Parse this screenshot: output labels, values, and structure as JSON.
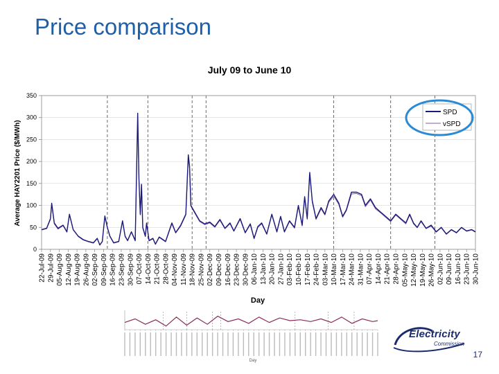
{
  "slide": {
    "title": "Price comparison",
    "page_number": "17"
  },
  "logo": {
    "word": "Electricity",
    "sub": "Commission"
  },
  "chart_data": {
    "type": "line",
    "title": "July 09 to June 10",
    "xlabel": "Day",
    "ylabel": "Average HAY2201 Price ($/MWh)",
    "ylim": [
      0,
      350
    ],
    "yticks": [
      0,
      50,
      100,
      150,
      200,
      250,
      300,
      350
    ],
    "x_start": "2009-07-22",
    "x_end": "2010-06-30",
    "xtick_labels": [
      "22-Jul-09",
      "29-Jul-09",
      "05-Aug-09",
      "12-Aug-09",
      "19-Aug-09",
      "26-Aug-09",
      "02-Sep-09",
      "09-Sep-09",
      "16-Sep-09",
      "23-Sep-09",
      "30-Sep-09",
      "07-Oct-09",
      "14-Oct-09",
      "21-Oct-09",
      "28-Oct-09",
      "04-Nov-09",
      "11-Nov-09",
      "18-Nov-09",
      "25-Nov-09",
      "02-Dec-09",
      "09-Dec-09",
      "16-Dec-09",
      "23-Dec-09",
      "30-Dec-09",
      "06-Jan-10",
      "13-Jan-10",
      "20-Jan-10",
      "27-Jan-10",
      "03-Feb-10",
      "10-Feb-10",
      "17-Feb-10",
      "24-Feb-10",
      "03-Mar-10",
      "10-Mar-10",
      "17-Mar-10",
      "24-Mar-10",
      "31-Mar-10",
      "07-Apr-10",
      "14-Apr-10",
      "21-Apr-10",
      "28-Apr-10",
      "05-May-10",
      "12-May-10",
      "19-May-10",
      "26-May-10",
      "02-Jun-10",
      "09-Jun-10",
      "16-Jun-10",
      "23-Jun-10",
      "30-Jun-10"
    ],
    "dashed_markers": [
      "2009-09-12",
      "2009-10-14",
      "2009-11-18",
      "2009-11-29",
      "2010-03-10",
      "2010-04-24",
      "2010-05-29"
    ],
    "legend": {
      "position": "top-right",
      "highlighted": true
    },
    "series": [
      {
        "name": "SPD",
        "color": "#1a1a7a",
        "points": [
          [
            "2009-07-22",
            45
          ],
          [
            "2009-07-26",
            48
          ],
          [
            "2009-07-29",
            70
          ],
          [
            "2009-07-30",
            105
          ],
          [
            "2009-08-01",
            60
          ],
          [
            "2009-08-04",
            48
          ],
          [
            "2009-08-08",
            55
          ],
          [
            "2009-08-11",
            40
          ],
          [
            "2009-08-13",
            80
          ],
          [
            "2009-08-16",
            45
          ],
          [
            "2009-08-20",
            30
          ],
          [
            "2009-08-24",
            22
          ],
          [
            "2009-08-28",
            18
          ],
          [
            "2009-09-01",
            15
          ],
          [
            "2009-09-04",
            25
          ],
          [
            "2009-09-06",
            10
          ],
          [
            "2009-09-08",
            18
          ],
          [
            "2009-09-10",
            76
          ],
          [
            "2009-09-12",
            50
          ],
          [
            "2009-09-14",
            30
          ],
          [
            "2009-09-17",
            15
          ],
          [
            "2009-09-21",
            18
          ],
          [
            "2009-09-24",
            65
          ],
          [
            "2009-09-26",
            30
          ],
          [
            "2009-09-28",
            20
          ],
          [
            "2009-10-01",
            40
          ],
          [
            "2009-10-04",
            20
          ],
          [
            "2009-10-06",
            310
          ],
          [
            "2009-10-07",
            160
          ],
          [
            "2009-10-08",
            80
          ],
          [
            "2009-10-09",
            148
          ],
          [
            "2009-10-10",
            50
          ],
          [
            "2009-10-12",
            30
          ],
          [
            "2009-10-13",
            60
          ],
          [
            "2009-10-15",
            20
          ],
          [
            "2009-10-18",
            25
          ],
          [
            "2009-10-20",
            12
          ],
          [
            "2009-10-23",
            28
          ],
          [
            "2009-10-26",
            22
          ],
          [
            "2009-10-28",
            18
          ],
          [
            "2009-11-02",
            60
          ],
          [
            "2009-11-05",
            38
          ],
          [
            "2009-11-09",
            55
          ],
          [
            "2009-11-13",
            80
          ],
          [
            "2009-11-15",
            215
          ],
          [
            "2009-11-16",
            190
          ],
          [
            "2009-11-17",
            100
          ],
          [
            "2009-11-20",
            85
          ],
          [
            "2009-11-24",
            65
          ],
          [
            "2009-11-28",
            58
          ],
          [
            "2009-12-02",
            62
          ],
          [
            "2009-12-06",
            52
          ],
          [
            "2009-12-10",
            68
          ],
          [
            "2009-12-14",
            48
          ],
          [
            "2009-12-18",
            60
          ],
          [
            "2009-12-21",
            42
          ],
          [
            "2009-12-26",
            70
          ],
          [
            "2009-12-30",
            38
          ],
          [
            "2010-01-03",
            58
          ],
          [
            "2010-01-06",
            25
          ],
          [
            "2010-01-09",
            52
          ],
          [
            "2010-01-12",
            60
          ],
          [
            "2010-01-16",
            35
          ],
          [
            "2010-01-20",
            80
          ],
          [
            "2010-01-24",
            40
          ],
          [
            "2010-01-27",
            75
          ],
          [
            "2010-01-30",
            40
          ],
          [
            "2010-02-03",
            65
          ],
          [
            "2010-02-07",
            50
          ],
          [
            "2010-02-10",
            100
          ],
          [
            "2010-02-13",
            55
          ],
          [
            "2010-02-15",
            120
          ],
          [
            "2010-02-17",
            70
          ],
          [
            "2010-02-19",
            175
          ],
          [
            "2010-02-21",
            110
          ],
          [
            "2010-02-24",
            70
          ],
          [
            "2010-02-28",
            95
          ],
          [
            "2010-03-03",
            80
          ],
          [
            "2010-03-06",
            110
          ],
          [
            "2010-03-10",
            125
          ],
          [
            "2010-03-14",
            105
          ],
          [
            "2010-03-17",
            75
          ],
          [
            "2010-03-20",
            90
          ],
          [
            "2010-03-24",
            130
          ],
          [
            "2010-03-28",
            130
          ],
          [
            "2010-04-01",
            125
          ],
          [
            "2010-04-04",
            100
          ],
          [
            "2010-04-08",
            115
          ],
          [
            "2010-04-12",
            95
          ],
          [
            "2010-04-16",
            85
          ],
          [
            "2010-04-20",
            75
          ],
          [
            "2010-04-24",
            65
          ],
          [
            "2010-04-28",
            80
          ],
          [
            "2010-05-02",
            70
          ],
          [
            "2010-05-06",
            60
          ],
          [
            "2010-05-09",
            80
          ],
          [
            "2010-05-12",
            60
          ],
          [
            "2010-05-15",
            50
          ],
          [
            "2010-05-18",
            65
          ],
          [
            "2010-05-22",
            48
          ],
          [
            "2010-05-26",
            55
          ],
          [
            "2010-05-30",
            40
          ],
          [
            "2010-06-03",
            50
          ],
          [
            "2010-06-07",
            35
          ],
          [
            "2010-06-11",
            45
          ],
          [
            "2010-06-15",
            38
          ],
          [
            "2010-06-19",
            50
          ],
          [
            "2010-06-23",
            42
          ],
          [
            "2010-06-27",
            45
          ],
          [
            "2010-06-30",
            40
          ]
        ]
      },
      {
        "name": "vSPD",
        "color": "#8a5aa0",
        "points": [
          [
            "2009-07-22",
            44
          ],
          [
            "2009-07-26",
            47
          ],
          [
            "2009-07-29",
            68
          ],
          [
            "2009-07-30",
            102
          ],
          [
            "2009-08-01",
            58
          ],
          [
            "2009-08-04",
            46
          ],
          [
            "2009-08-08",
            54
          ],
          [
            "2009-08-11",
            39
          ],
          [
            "2009-08-13",
            78
          ],
          [
            "2009-08-16",
            44
          ],
          [
            "2009-08-20",
            29
          ],
          [
            "2009-08-24",
            21
          ],
          [
            "2009-08-28",
            17
          ],
          [
            "2009-09-01",
            14
          ],
          [
            "2009-09-04",
            24
          ],
          [
            "2009-09-06",
            10
          ],
          [
            "2009-09-08",
            17
          ],
          [
            "2009-09-10",
            74
          ],
          [
            "2009-09-12",
            49
          ],
          [
            "2009-09-14",
            29
          ],
          [
            "2009-09-17",
            14
          ],
          [
            "2009-09-21",
            17
          ],
          [
            "2009-09-24",
            63
          ],
          [
            "2009-09-26",
            29
          ],
          [
            "2009-09-28",
            19
          ],
          [
            "2009-10-01",
            39
          ],
          [
            "2009-10-04",
            19
          ],
          [
            "2009-10-06",
            300
          ],
          [
            "2009-10-07",
            155
          ],
          [
            "2009-10-08",
            78
          ],
          [
            "2009-10-09",
            142
          ],
          [
            "2009-10-10",
            48
          ],
          [
            "2009-10-12",
            29
          ],
          [
            "2009-10-13",
            58
          ],
          [
            "2009-10-15",
            19
          ],
          [
            "2009-10-18",
            24
          ],
          [
            "2009-10-20",
            11
          ],
          [
            "2009-10-23",
            27
          ],
          [
            "2009-10-26",
            21
          ],
          [
            "2009-10-28",
            17
          ],
          [
            "2009-11-02",
            58
          ],
          [
            "2009-11-05",
            37
          ],
          [
            "2009-11-09",
            53
          ],
          [
            "2009-11-13",
            78
          ],
          [
            "2009-11-15",
            208
          ],
          [
            "2009-11-16",
            185
          ],
          [
            "2009-11-17",
            98
          ],
          [
            "2009-11-20",
            83
          ],
          [
            "2009-11-24",
            63
          ],
          [
            "2009-11-28",
            56
          ],
          [
            "2009-12-02",
            60
          ],
          [
            "2009-12-06",
            50
          ],
          [
            "2009-12-10",
            66
          ],
          [
            "2009-12-14",
            47
          ],
          [
            "2009-12-18",
            58
          ],
          [
            "2009-12-21",
            41
          ],
          [
            "2009-12-26",
            68
          ],
          [
            "2009-12-30",
            37
          ],
          [
            "2010-01-03",
            56
          ],
          [
            "2010-01-06",
            24
          ],
          [
            "2010-01-09",
            50
          ],
          [
            "2010-01-12",
            58
          ],
          [
            "2010-01-16",
            34
          ],
          [
            "2010-01-20",
            78
          ],
          [
            "2010-01-24",
            39
          ],
          [
            "2010-01-27",
            73
          ],
          [
            "2010-01-30",
            39
          ],
          [
            "2010-02-03",
            63
          ],
          [
            "2010-02-07",
            48
          ],
          [
            "2010-02-10",
            97
          ],
          [
            "2010-02-13",
            53
          ],
          [
            "2010-02-15",
            116
          ],
          [
            "2010-02-17",
            68
          ],
          [
            "2010-02-19",
            170
          ],
          [
            "2010-02-21",
            107
          ],
          [
            "2010-02-24",
            68
          ],
          [
            "2010-02-28",
            92
          ],
          [
            "2010-03-03",
            78
          ],
          [
            "2010-03-06",
            107
          ],
          [
            "2010-03-10",
            121
          ],
          [
            "2010-03-14",
            102
          ],
          [
            "2010-03-17",
            73
          ],
          [
            "2010-03-20",
            88
          ],
          [
            "2010-03-24",
            126
          ],
          [
            "2010-03-28",
            127
          ],
          [
            "2010-04-01",
            122
          ],
          [
            "2010-04-04",
            97
          ],
          [
            "2010-04-08",
            112
          ],
          [
            "2010-04-12",
            92
          ],
          [
            "2010-04-16",
            83
          ],
          [
            "2010-04-20",
            73
          ],
          [
            "2010-04-24",
            63
          ],
          [
            "2010-04-28",
            78
          ],
          [
            "2010-05-02",
            68
          ],
          [
            "2010-05-06",
            58
          ],
          [
            "2010-05-09",
            78
          ],
          [
            "2010-05-12",
            58
          ],
          [
            "2010-05-15",
            49
          ],
          [
            "2010-05-18",
            63
          ],
          [
            "2010-05-22",
            47
          ],
          [
            "2010-05-26",
            53
          ],
          [
            "2010-05-30",
            39
          ],
          [
            "2010-06-03",
            49
          ],
          [
            "2010-06-07",
            34
          ],
          [
            "2010-06-11",
            44
          ],
          [
            "2010-06-15",
            37
          ],
          [
            "2010-06-19",
            49
          ],
          [
            "2010-06-23",
            41
          ],
          [
            "2010-06-27",
            44
          ],
          [
            "2010-06-30",
            39
          ]
        ]
      }
    ]
  },
  "inset_chart": {
    "type": "line",
    "xlabel": "Day",
    "series_color": "#8a2a5a",
    "points": [
      [
        "2009-07-22",
        40
      ],
      [
        "2009-08-05",
        60
      ],
      [
        "2009-08-19",
        30
      ],
      [
        "2009-09-02",
        55
      ],
      [
        "2009-09-16",
        20
      ],
      [
        "2009-09-30",
        70
      ],
      [
        "2009-10-14",
        25
      ],
      [
        "2009-10-28",
        65
      ],
      [
        "2009-11-11",
        30
      ],
      [
        "2009-11-25",
        75
      ],
      [
        "2009-12-09",
        45
      ],
      [
        "2009-12-23",
        60
      ],
      [
        "2010-01-06",
        35
      ],
      [
        "2010-01-20",
        70
      ],
      [
        "2010-02-03",
        40
      ],
      [
        "2010-02-17",
        65
      ],
      [
        "2010-03-03",
        50
      ],
      [
        "2010-03-17",
        55
      ],
      [
        "2010-03-31",
        45
      ],
      [
        "2010-04-14",
        60
      ],
      [
        "2010-04-28",
        40
      ],
      [
        "2010-05-12",
        70
      ],
      [
        "2010-05-26",
        35
      ],
      [
        "2010-06-09",
        60
      ],
      [
        "2010-06-23",
        45
      ],
      [
        "2010-06-30",
        50
      ]
    ]
  }
}
